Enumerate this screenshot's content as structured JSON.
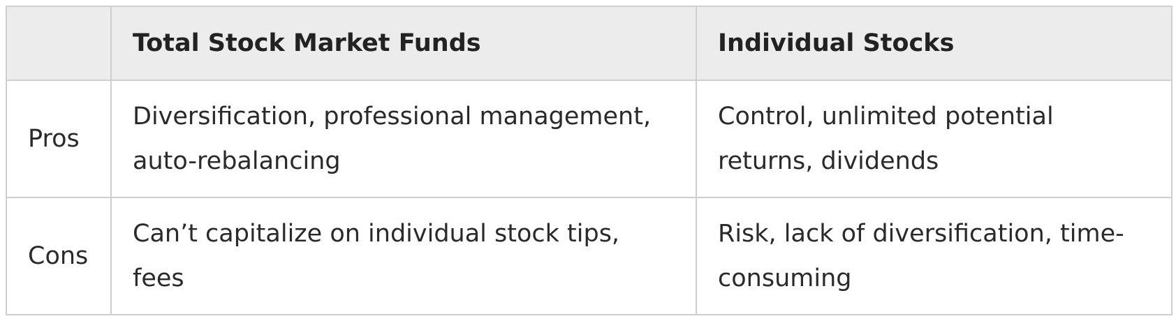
{
  "table": {
    "headers": [
      "",
      "Total Stock Market Funds",
      "Individual Stocks"
    ],
    "rows": [
      {
        "label": "Pros",
        "cells": [
          "Diversification, professional management, auto-rebalancing",
          "Control, unlimited potential returns, dividends"
        ]
      },
      {
        "label": "Cons",
        "cells": [
          "Can’t capitalize on individual stock tips, fees",
          "Risk, lack of diversification, time-consuming"
        ]
      }
    ]
  }
}
